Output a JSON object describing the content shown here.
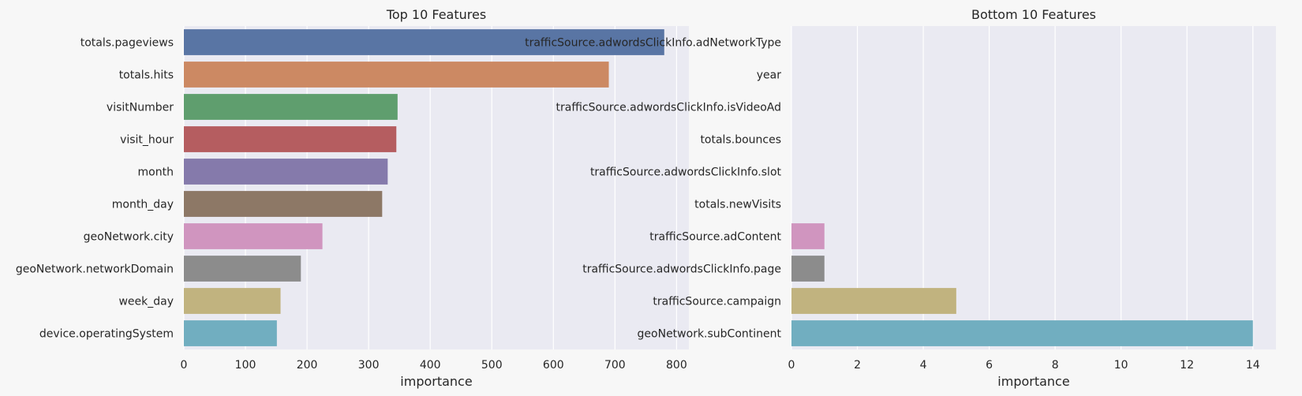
{
  "chart_data": [
    {
      "type": "bar",
      "orientation": "horizontal",
      "title": "Top 10 Features",
      "xlabel": "importance",
      "ylabel": "",
      "xlim": [
        0,
        820
      ],
      "xticks": [
        0,
        100,
        200,
        300,
        400,
        500,
        600,
        700,
        800
      ],
      "grid": true,
      "categories": [
        "totals.pageviews",
        "totals.hits",
        "visitNumber",
        "visit_hour",
        "month",
        "month_day",
        "geoNetwork.city",
        "geoNetwork.networkDomain",
        "week_day",
        "device.operatingSystem"
      ],
      "values": [
        780,
        690,
        347,
        345,
        331,
        322,
        225,
        190,
        157,
        151
      ],
      "colors": [
        "#5975a4",
        "#cc8963",
        "#5f9e6e",
        "#b55d60",
        "#857aab",
        "#8d7866",
        "#d095bf",
        "#8c8c8c",
        "#c1b37f",
        "#71aec0"
      ]
    },
    {
      "type": "bar",
      "orientation": "horizontal",
      "title": "Bottom 10 Features",
      "xlabel": "importance",
      "ylabel": "",
      "xlim": [
        0,
        14.7
      ],
      "xticks": [
        0,
        2,
        4,
        6,
        8,
        10,
        12,
        14
      ],
      "grid": true,
      "categories": [
        "trafficSource.adwordsClickInfo.adNetworkType",
        "year",
        "trafficSource.adwordsClickInfo.isVideoAd",
        "totals.bounces",
        "trafficSource.adwordsClickInfo.slot",
        "totals.newVisits",
        "trafficSource.adContent",
        "trafficSource.adwordsClickInfo.page",
        "trafficSource.campaign",
        "geoNetwork.subContinent"
      ],
      "values": [
        0,
        0,
        0,
        0,
        0,
        0,
        1,
        1,
        5,
        14
      ],
      "colors": [
        "#5975a4",
        "#cc8963",
        "#5f9e6e",
        "#b55d60",
        "#857aab",
        "#8d7866",
        "#d095bf",
        "#8c8c8c",
        "#c1b37f",
        "#71aec0"
      ]
    }
  ]
}
